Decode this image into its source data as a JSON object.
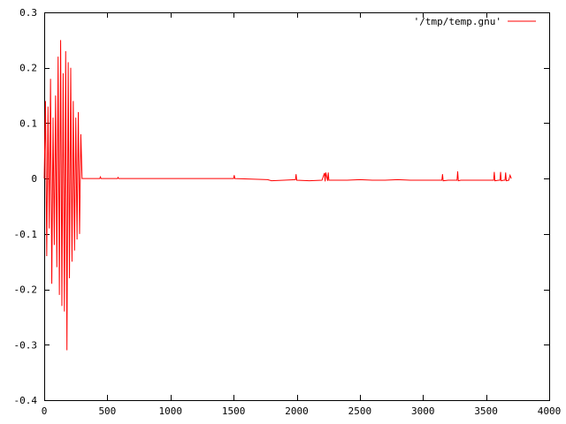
{
  "chart_data": {
    "type": "line",
    "title": "",
    "xlabel": "",
    "ylabel": "",
    "xlim": [
      0,
      4000
    ],
    "ylim": [
      -0.4,
      0.3
    ],
    "x_ticks": [
      0,
      500,
      1000,
      1500,
      2000,
      2500,
      3000,
      3500,
      4000
    ],
    "y_ticks": [
      -0.4,
      -0.3,
      -0.2,
      -0.1,
      0,
      0.1,
      0.2,
      0.3
    ],
    "x_tick_labels": [
      "0",
      "500",
      "1000",
      "1500",
      "2000",
      "2500",
      "3000",
      "3500",
      "4000"
    ],
    "y_tick_labels": [
      "-0.4",
      "-0.3",
      "-0.2",
      "-0.1",
      "0",
      "0.1",
      "0.2",
      "0.3"
    ],
    "grid": false,
    "legend_position": "top-right",
    "series": [
      {
        "name": "'/tmp/temp.gnu'",
        "color": "#ff0000",
        "x": [
          0,
          10,
          20,
          30,
          40,
          50,
          60,
          70,
          80,
          90,
          100,
          110,
          120,
          130,
          140,
          150,
          160,
          170,
          180,
          190,
          200,
          210,
          220,
          230,
          240,
          250,
          260,
          270,
          280,
          290,
          300,
          440,
          445,
          450,
          580,
          585,
          590,
          1500,
          1505,
          1510,
          1770,
          1800,
          1900,
          1990,
          1995,
          2000,
          2100,
          2200,
          2220,
          2225,
          2230,
          2245,
          2250,
          2255,
          2300,
          2400,
          2500,
          2600,
          2700,
          2800,
          2900,
          3000,
          3100,
          3150,
          3155,
          3160,
          3200,
          3270,
          3275,
          3280,
          3300,
          3400,
          3500,
          3560,
          3565,
          3570,
          3600,
          3610,
          3615,
          3620,
          3640,
          3650,
          3655,
          3660,
          3680,
          3690,
          3700
        ],
        "values": [
          0.0,
          0.14,
          -0.14,
          0.13,
          -0.09,
          0.18,
          -0.19,
          0.11,
          -0.12,
          0.15,
          -0.16,
          0.22,
          -0.21,
          0.25,
          -0.23,
          0.19,
          -0.24,
          0.23,
          -0.31,
          0.21,
          -0.18,
          0.2,
          -0.15,
          0.14,
          -0.13,
          0.11,
          -0.11,
          0.12,
          -0.1,
          0.08,
          0.0,
          0.0,
          0.003,
          0.0,
          0.0,
          0.002,
          0.0,
          0.0,
          0.006,
          0.0,
          -0.002,
          -0.004,
          -0.003,
          -0.002,
          0.008,
          -0.003,
          -0.004,
          -0.003,
          0.01,
          -0.005,
          0.011,
          -0.004,
          0.011,
          -0.003,
          -0.003,
          -0.003,
          -0.002,
          -0.003,
          -0.003,
          -0.002,
          -0.003,
          -0.003,
          -0.003,
          -0.003,
          0.008,
          -0.004,
          -0.003,
          -0.003,
          0.013,
          -0.004,
          -0.003,
          -0.003,
          -0.003,
          -0.003,
          0.012,
          -0.004,
          -0.003,
          -0.003,
          0.012,
          -0.004,
          -0.003,
          -0.003,
          0.011,
          -0.004,
          -0.003,
          0.006,
          0.0
        ]
      }
    ]
  }
}
